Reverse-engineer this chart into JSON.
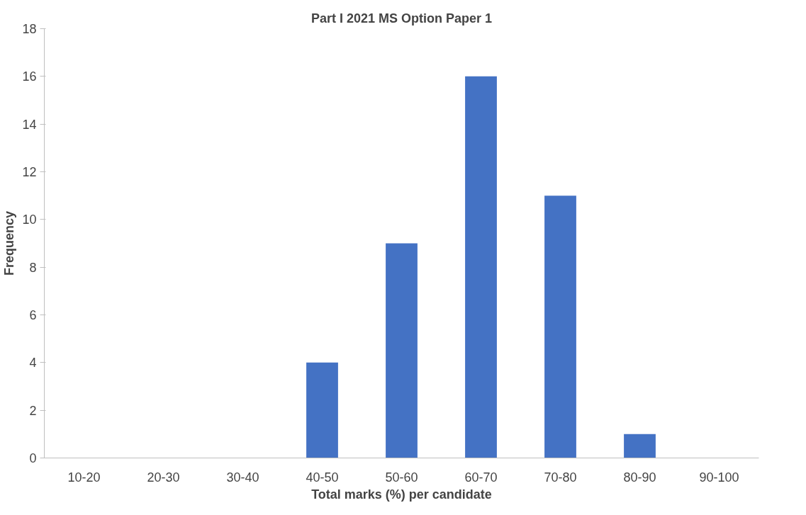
{
  "chart_data": {
    "type": "bar",
    "title": "Part I 2021 MS Option Paper 1",
    "xlabel": "Total marks (%) per candidate",
    "ylabel": "Frequency",
    "categories": [
      "10-20",
      "20-30",
      "30-40",
      "40-50",
      "50-60",
      "60-70",
      "70-80",
      "80-90",
      "90-100"
    ],
    "values": [
      0,
      0,
      0,
      4,
      9,
      16,
      11,
      1,
      0
    ],
    "color": "#4472c4",
    "ylim": [
      0,
      18
    ],
    "yticks": [
      0,
      2,
      4,
      6,
      8,
      10,
      12,
      14,
      16,
      18
    ],
    "grid": false
  }
}
